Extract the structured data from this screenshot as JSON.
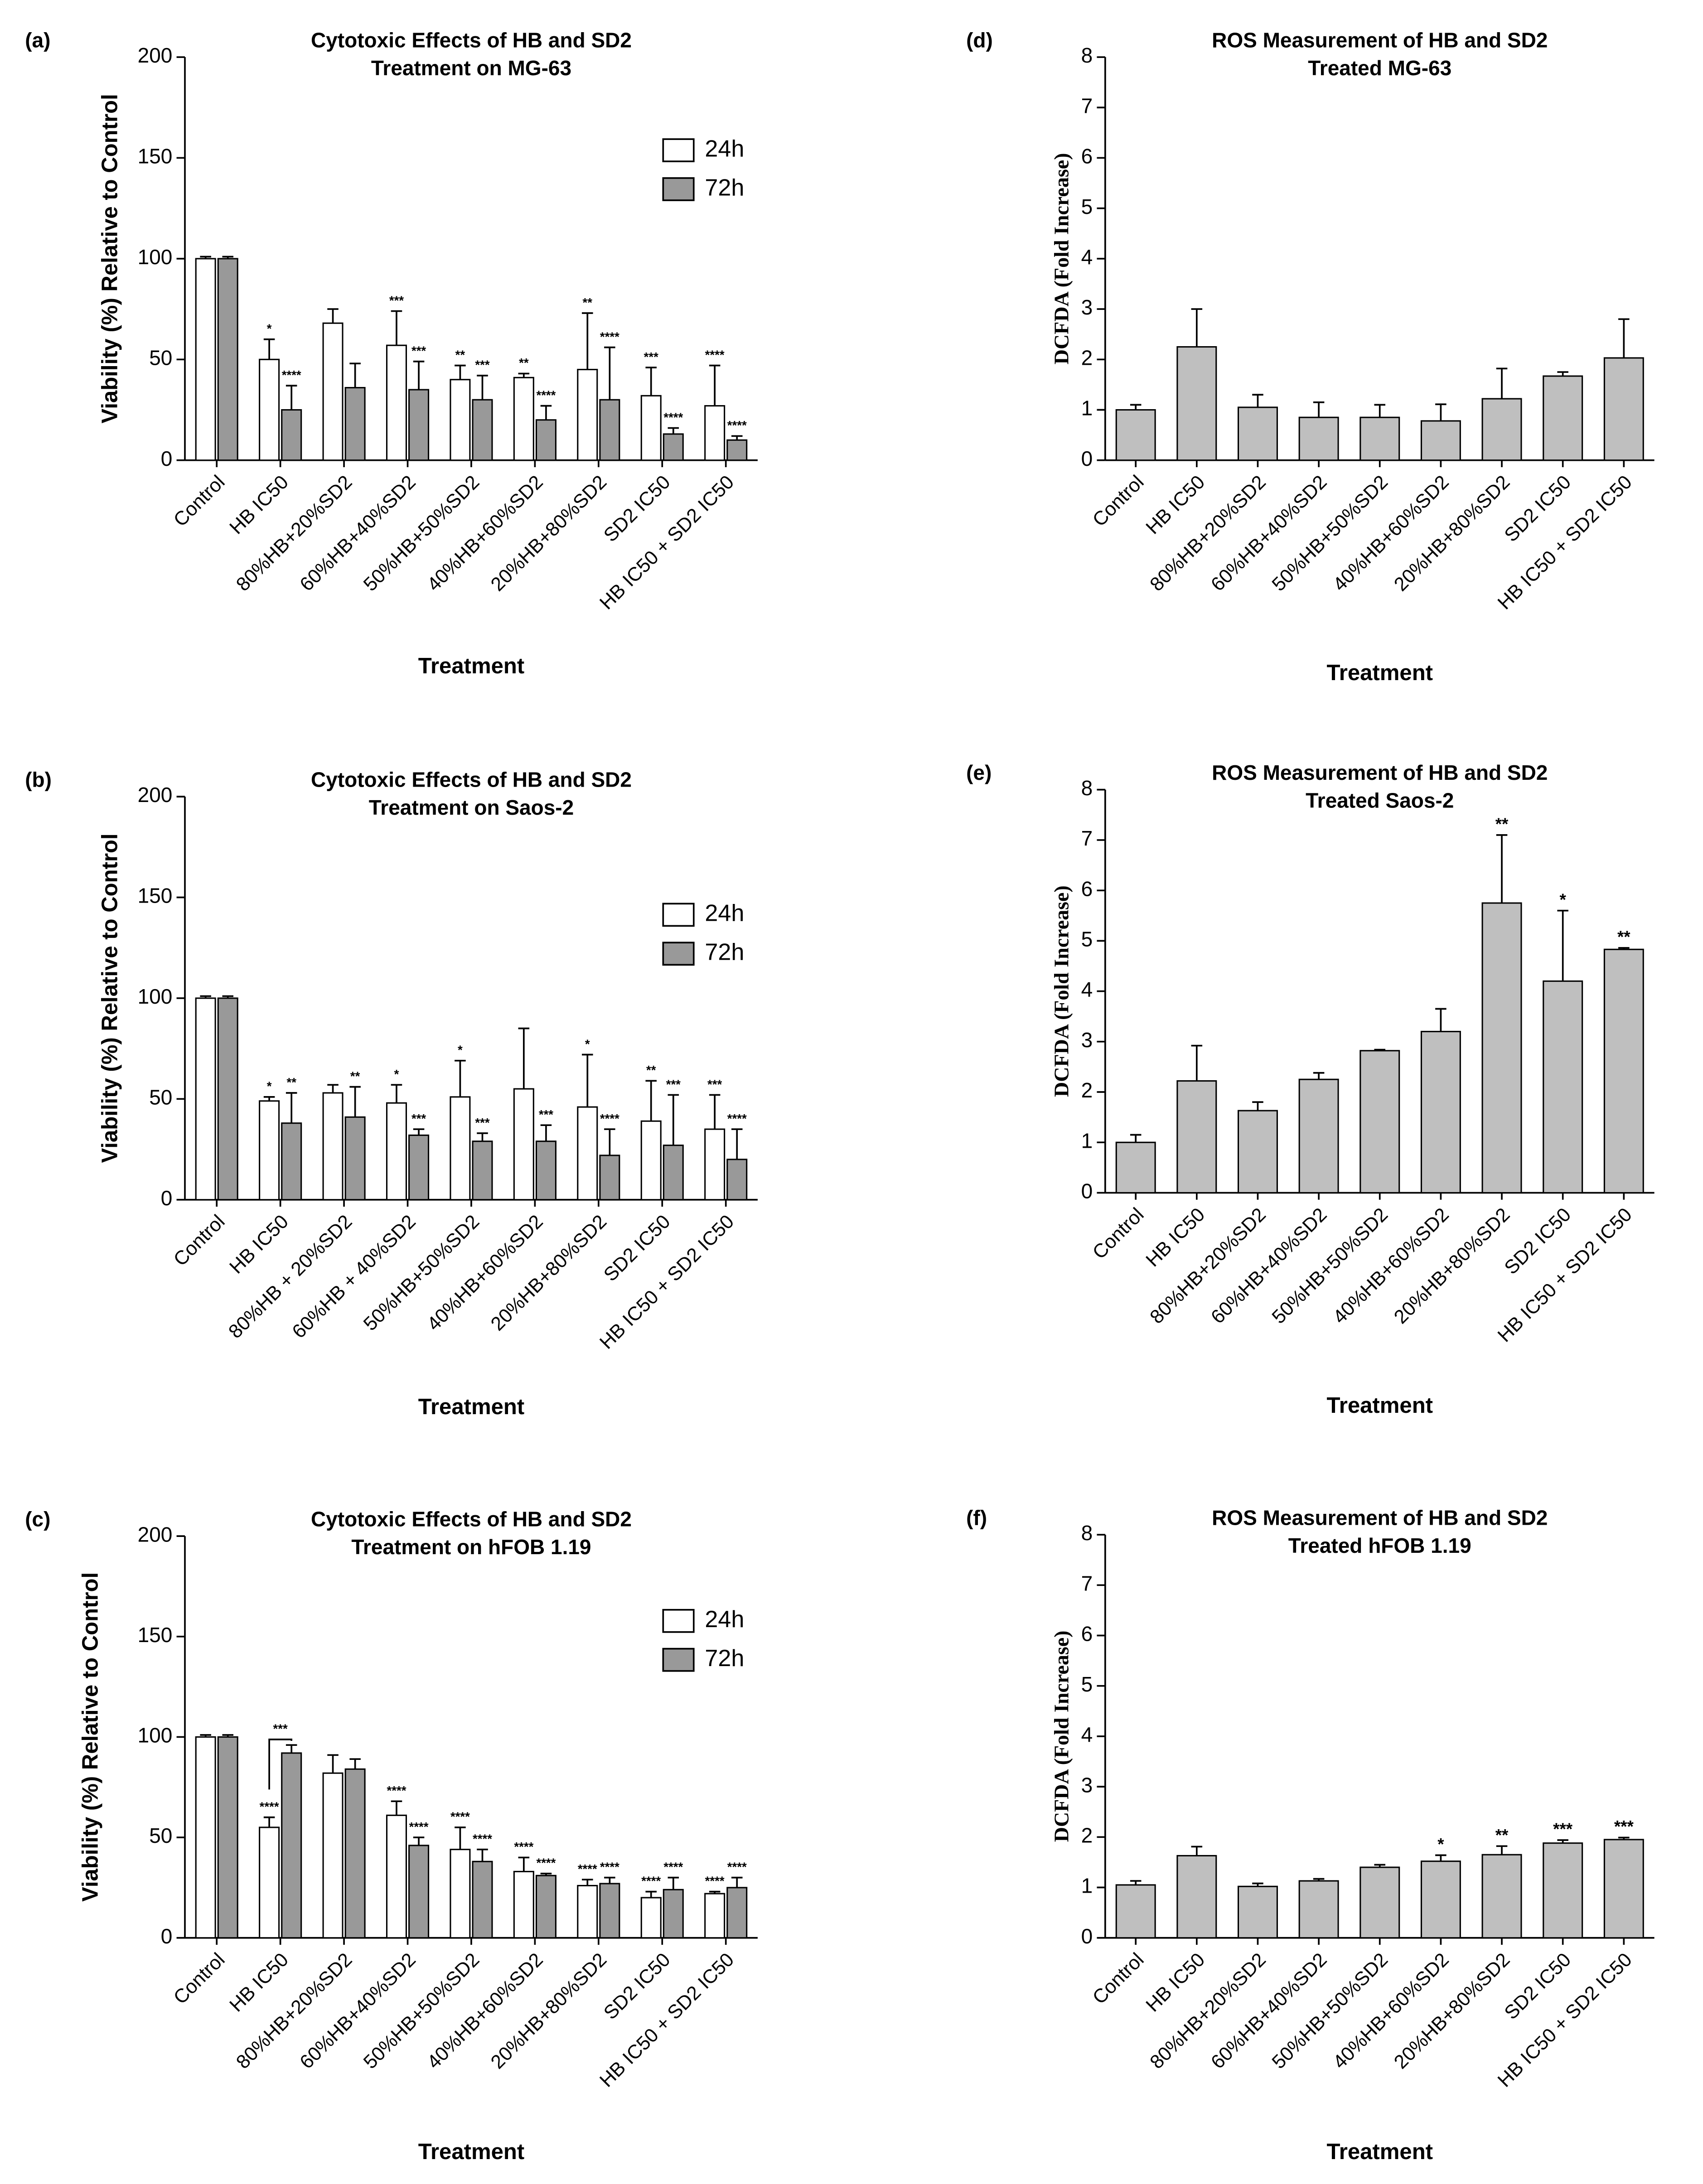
{
  "chart_data": [
    {
      "type": "bar",
      "panel": "(a)",
      "title": [
        "Cytotoxic Effects of HB and SD2",
        "Treatment on MG-63"
      ],
      "x_label": "Treatment",
      "y_label": "Viability (%) Relative to Control",
      "legend": "upper right",
      "categories": [
        "Control",
        "HB IC50",
        "80%HB+20%SD2",
        "60%HB+40%SD2",
        "50%HB+50%SD2",
        "40%HB+60%SD2",
        "20%HB+80%SD2",
        "SD2 IC50",
        "HB IC50 + SD2 IC50"
      ],
      "ylim": [
        0,
        200
      ],
      "yticks": [
        0,
        50,
        100,
        150,
        200
      ],
      "series": [
        {
          "name": "24h",
          "color": "#ffffff",
          "values": [
            100,
            50,
            68,
            57,
            40,
            41,
            45,
            32,
            27
          ],
          "errors": [
            1,
            10,
            7,
            17,
            7,
            2,
            28,
            14,
            20
          ],
          "annotations": [
            null,
            "*",
            null,
            "***",
            "**",
            "**",
            "**",
            "***",
            "****"
          ]
        },
        {
          "name": "72h",
          "color": "#999999",
          "values": [
            100,
            25,
            36,
            35,
            30,
            20,
            30,
            13,
            10
          ],
          "errors": [
            1,
            12,
            12,
            14,
            12,
            7,
            26,
            3,
            2
          ],
          "annotations": [
            null,
            "****",
            null,
            "***",
            "***",
            "****",
            "****",
            "****",
            "****"
          ]
        }
      ]
    },
    {
      "type": "bar",
      "panel": "(b)",
      "title": [
        "Cytotoxic Effects of HB and SD2",
        "Treatment on Saos-2"
      ],
      "x_label": "Treatment",
      "y_label": "Viability (%) Relative to Control",
      "legend": "upper right",
      "categories": [
        "Control",
        "HB IC50",
        "80%HB + 20%SD2",
        "60%HB + 40%SD2",
        "50%HB+50%SD2",
        "40%HB+60%SD2",
        "20%HB+80%SD2",
        "SD2 IC50",
        "HB IC50 + SD2 IC50"
      ],
      "ylim": [
        0,
        200
      ],
      "yticks": [
        0,
        50,
        100,
        150,
        200
      ],
      "series": [
        {
          "name": "24h",
          "color": "#ffffff",
          "values": [
            100,
            49,
            53,
            48,
            51,
            55,
            46,
            39,
            35
          ],
          "errors": [
            1,
            2,
            4,
            9,
            18,
            30,
            26,
            20,
            17
          ],
          "annotations": [
            null,
            "*",
            null,
            "*",
            "*",
            null,
            "*",
            "**",
            "***"
          ]
        },
        {
          "name": "72h",
          "color": "#999999",
          "values": [
            100,
            38,
            41,
            32,
            29,
            29,
            22,
            27,
            20
          ],
          "errors": [
            1,
            15,
            15,
            3,
            4,
            8,
            13,
            25,
            15
          ],
          "annotations": [
            null,
            "**",
            "**",
            "***",
            "***",
            "***",
            "****",
            "***",
            "****"
          ]
        }
      ]
    },
    {
      "type": "bar",
      "panel": "(c)",
      "title": [
        "Cytotoxic Effects of HB and SD2",
        "Treatment on hFOB 1.19"
      ],
      "x_label": "Treatment",
      "y_label": "Viability (%) Relative to Control",
      "legend": "upper right",
      "categories": [
        "Control",
        "HB IC50",
        "80%HB+20%SD2",
        "60%HB+40%SD2",
        "50%HB+50%SD2",
        "40%HB+60%SD2",
        "20%HB+80%SD2",
        "SD2 IC50",
        "HB IC50 + SD2 IC50"
      ],
      "ylim": [
        0,
        200
      ],
      "yticks": [
        0,
        50,
        100,
        150,
        200
      ],
      "bracket_labels": [
        null,
        "***",
        null,
        null,
        null,
        null,
        null,
        null,
        null
      ],
      "series": [
        {
          "name": "24h",
          "color": "#ffffff",
          "values": [
            100,
            55,
            82,
            61,
            44,
            33,
            26,
            20,
            22
          ],
          "errors": [
            1,
            5,
            9,
            7,
            11,
            7,
            3,
            3,
            1
          ],
          "annotations": [
            null,
            "****",
            null,
            "****",
            "****",
            "****",
            "****",
            "****",
            "****"
          ]
        },
        {
          "name": "72h",
          "color": "#999999",
          "values": [
            100,
            92,
            84,
            46,
            38,
            31,
            27,
            24,
            25
          ],
          "errors": [
            1,
            4,
            5,
            4,
            6,
            1,
            3,
            6,
            5
          ],
          "annotations": [
            null,
            null,
            null,
            "****",
            "****",
            "****",
            "****",
            "****",
            "****"
          ]
        }
      ]
    },
    {
      "type": "bar",
      "panel": "(d)",
      "title": [
        "ROS Measurement of HB and SD2",
        "Treated MG-63"
      ],
      "x_label": "Treatment",
      "y_label": "DCFDA (Fold Increase)",
      "categories": [
        "Control",
        "HB IC50",
        "80%HB+20%SD2",
        "60%HB+40%SD2",
        "50%HB+50%SD2",
        "40%HB+60%SD2",
        "20%HB+80%SD2",
        "SD2 IC50",
        "HB IC50 + SD2 IC50"
      ],
      "ylim": [
        0,
        8
      ],
      "yticks": [
        0,
        1,
        2,
        3,
        4,
        5,
        6,
        7,
        8
      ],
      "series": [
        {
          "color": "#bfbfbf",
          "values": [
            1.0,
            2.25,
            1.05,
            0.85,
            0.85,
            0.78,
            1.22,
            1.67,
            2.03
          ],
          "errors": [
            0.1,
            0.75,
            0.25,
            0.3,
            0.25,
            0.33,
            0.6,
            0.08,
            0.77
          ],
          "annotations": [
            null,
            null,
            null,
            null,
            null,
            null,
            null,
            null,
            null
          ]
        }
      ]
    },
    {
      "type": "bar",
      "panel": "(e)",
      "title": [
        "ROS Measurement of HB and SD2",
        "Treated Saos-2"
      ],
      "x_label": "Treatment",
      "y_label": "DCFDA (Fold Increase)",
      "categories": [
        "Control",
        "HB IC50",
        "80%HB+20%SD2",
        "60%HB+40%SD2",
        "50%HB+50%SD2",
        "40%HB+60%SD2",
        "20%HB+80%SD2",
        "SD2 IC50",
        "HB IC50 + SD2 IC50"
      ],
      "ylim": [
        0,
        8
      ],
      "yticks": [
        0,
        1,
        2,
        3,
        4,
        5,
        6,
        7,
        8
      ],
      "series": [
        {
          "color": "#bfbfbf",
          "values": [
            1.0,
            2.22,
            1.63,
            2.25,
            2.82,
            3.2,
            5.75,
            4.2,
            4.83
          ],
          "errors": [
            0.15,
            0.7,
            0.17,
            0.13,
            0.02,
            0.45,
            1.35,
            1.4,
            0.03
          ],
          "annotations": [
            null,
            null,
            null,
            null,
            null,
            null,
            "**",
            "*",
            "**"
          ]
        }
      ]
    },
    {
      "type": "bar",
      "panel": "(f)",
      "title": [
        "ROS Measurement of HB and SD2",
        "Treated hFOB 1.19"
      ],
      "x_label": "Treatment",
      "y_label": "DCFDA (Fold Increase)",
      "categories": [
        "Control",
        "HB IC50",
        "80%HB+20%SD2",
        "60%HB+40%SD2",
        "50%HB+50%SD2",
        "40%HB+60%SD2",
        "20%HB+80%SD2",
        "SD2 IC50",
        "HB IC50 + SD2 IC50"
      ],
      "ylim": [
        0,
        8
      ],
      "yticks": [
        0,
        1,
        2,
        3,
        4,
        5,
        6,
        7,
        8
      ],
      "series": [
        {
          "color": "#bfbfbf",
          "values": [
            1.05,
            1.63,
            1.02,
            1.13,
            1.4,
            1.52,
            1.65,
            1.88,
            1.95
          ],
          "errors": [
            0.08,
            0.18,
            0.06,
            0.04,
            0.05,
            0.12,
            0.17,
            0.06,
            0.04
          ],
          "annotations": [
            null,
            null,
            null,
            null,
            null,
            "*",
            "**",
            "***",
            "***"
          ]
        }
      ]
    }
  ]
}
